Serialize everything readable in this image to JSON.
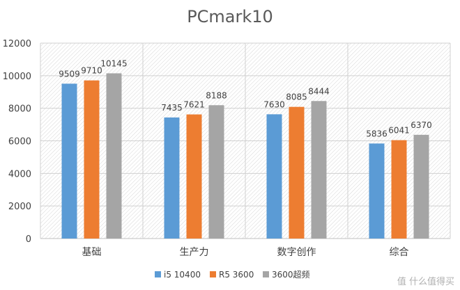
{
  "chart_data": {
    "type": "bar",
    "title": "PCmark10",
    "categories": [
      "基础",
      "生产力",
      "数字创作",
      "综合"
    ],
    "series": [
      {
        "name": "i5 10400",
        "values": [
          9509,
          7435,
          7630,
          5836
        ],
        "color": "#5b9bd5"
      },
      {
        "name": "R5 3600",
        "values": [
          9710,
          7621,
          8085,
          6041
        ],
        "color": "#ed7d31"
      },
      {
        "name": "3600超频",
        "values": [
          10145,
          8188,
          8444,
          6370
        ],
        "color": "#a5a5a5"
      }
    ],
    "ylim": [
      0,
      12000
    ],
    "yticks": [
      0,
      2000,
      4000,
      6000,
      8000,
      10000,
      12000
    ],
    "grid": "hatched",
    "legend": "bottom",
    "data_labels": true
  },
  "watermark": "值 什么值得买"
}
